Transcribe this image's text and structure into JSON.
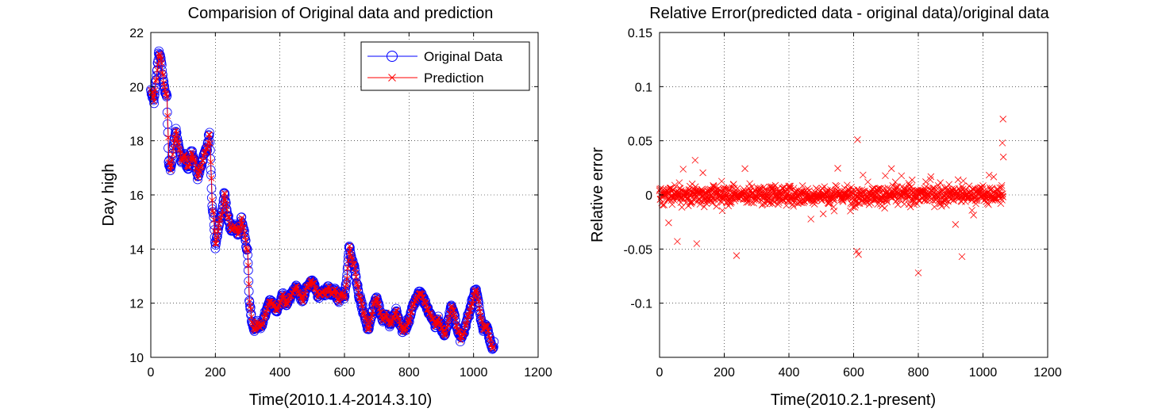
{
  "chart_data": [
    {
      "type": "line",
      "title": "Comparision of Original data and prediction",
      "xlabel": "Time(2010.1.4-2014.3.10)",
      "ylabel": "Day high",
      "xlim": [
        0,
        1200
      ],
      "ylim": [
        10,
        22
      ],
      "xticks": [
        "0",
        "200",
        "400",
        "600",
        "800",
        "1000",
        "1200"
      ],
      "yticks": [
        "10",
        "12",
        "14",
        "16",
        "18",
        "20",
        "22"
      ],
      "grid": true,
      "legend": "top-right",
      "colors": {
        "original": "#0000ff",
        "prediction": "#ff0000"
      },
      "keypoints": [
        [
          0,
          19.8
        ],
        [
          10,
          19.5
        ],
        [
          18,
          20.4
        ],
        [
          25,
          21.3
        ],
        [
          32,
          21.0
        ],
        [
          38,
          20.2
        ],
        [
          45,
          19.8
        ],
        [
          50,
          19.6
        ],
        [
          55,
          17.2
        ],
        [
          62,
          17.0
        ],
        [
          70,
          17.8
        ],
        [
          78,
          18.4
        ],
        [
          85,
          17.9
        ],
        [
          95,
          17.2
        ],
        [
          105,
          17.5
        ],
        [
          115,
          16.9
        ],
        [
          125,
          17.6
        ],
        [
          135,
          17.3
        ],
        [
          145,
          16.7
        ],
        [
          155,
          17.0
        ],
        [
          165,
          17.5
        ],
        [
          175,
          17.8
        ],
        [
          182,
          18.3
        ],
        [
          190,
          15.6
        ],
        [
          195,
          15.2
        ],
        [
          200,
          14.0
        ],
        [
          205,
          14.5
        ],
        [
          212,
          15.0
        ],
        [
          220,
          15.3
        ],
        [
          228,
          16.1
        ],
        [
          235,
          15.4
        ],
        [
          242,
          15.0
        ],
        [
          250,
          14.7
        ],
        [
          260,
          14.9
        ],
        [
          270,
          14.5
        ],
        [
          280,
          15.1
        ],
        [
          290,
          14.6
        ],
        [
          300,
          13.8
        ],
        [
          305,
          12.1
        ],
        [
          312,
          11.4
        ],
        [
          320,
          11.0
        ],
        [
          330,
          11.3
        ],
        [
          340,
          11.1
        ],
        [
          350,
          11.4
        ],
        [
          360,
          11.8
        ],
        [
          370,
          12.1
        ],
        [
          380,
          11.9
        ],
        [
          390,
          11.7
        ],
        [
          400,
          12.0
        ],
        [
          410,
          12.3
        ],
        [
          420,
          11.9
        ],
        [
          430,
          12.2
        ],
        [
          440,
          12.4
        ],
        [
          450,
          12.6
        ],
        [
          460,
          12.3
        ],
        [
          470,
          12.1
        ],
        [
          480,
          12.5
        ],
        [
          490,
          12.7
        ],
        [
          500,
          12.8
        ],
        [
          510,
          12.6
        ],
        [
          520,
          12.2
        ],
        [
          530,
          12.5
        ],
        [
          540,
          12.3
        ],
        [
          550,
          12.6
        ],
        [
          560,
          12.3
        ],
        [
          570,
          12.5
        ],
        [
          580,
          12.1
        ],
        [
          590,
          12.4
        ],
        [
          600,
          12.2
        ],
        [
          608,
          13.0
        ],
        [
          615,
          14.2
        ],
        [
          622,
          13.6
        ],
        [
          630,
          13.4
        ],
        [
          638,
          12.8
        ],
        [
          645,
          12.3
        ],
        [
          652,
          12.0
        ],
        [
          660,
          11.6
        ],
        [
          668,
          11.3
        ],
        [
          675,
          11.0
        ],
        [
          682,
          11.5
        ],
        [
          690,
          11.9
        ],
        [
          700,
          12.2
        ],
        [
          710,
          11.7
        ],
        [
          720,
          11.4
        ],
        [
          730,
          11.6
        ],
        [
          740,
          11.2
        ],
        [
          750,
          11.4
        ],
        [
          760,
          11.7
        ],
        [
          770,
          11.3
        ],
        [
          780,
          11.0
        ],
        [
          790,
          11.1
        ],
        [
          800,
          11.4
        ],
        [
          810,
          11.8
        ],
        [
          820,
          12.1
        ],
        [
          830,
          12.4
        ],
        [
          840,
          12.3
        ],
        [
          850,
          12.0
        ],
        [
          860,
          11.7
        ],
        [
          870,
          11.5
        ],
        [
          880,
          11.2
        ],
        [
          890,
          11.4
        ],
        [
          900,
          11.1
        ],
        [
          910,
          10.8
        ],
        [
          920,
          11.3
        ],
        [
          930,
          11.9
        ],
        [
          940,
          11.6
        ],
        [
          950,
          11.0
        ],
        [
          960,
          10.7
        ],
        [
          970,
          10.9
        ],
        [
          980,
          11.4
        ],
        [
          990,
          11.8
        ],
        [
          1000,
          12.3
        ],
        [
          1008,
          12.5
        ],
        [
          1015,
          12.1
        ],
        [
          1022,
          11.4
        ],
        [
          1030,
          11.0
        ],
        [
          1038,
          11.2
        ],
        [
          1045,
          11.0
        ],
        [
          1050,
          10.7
        ],
        [
          1055,
          10.4
        ],
        [
          1060,
          10.3
        ],
        [
          1063,
          10.5
        ]
      ],
      "series": [
        {
          "name": "Original Data",
          "marker": "circle",
          "color": "#0000ff"
        },
        {
          "name": "Prediction",
          "marker": "x",
          "color": "#ff0000"
        }
      ]
    },
    {
      "type": "scatter",
      "title": "Relative Error(predicted data - original data)/original data",
      "xlabel": "Time(2010.2.1-present)",
      "ylabel": "Relative error",
      "xlim": [
        0,
        1200
      ],
      "ylim": [
        -0.15,
        0.15
      ],
      "xticks": [
        "0",
        "200",
        "400",
        "600",
        "800",
        "1000",
        "1200"
      ],
      "yticks": [
        "0.15",
        "0.1",
        "0.05",
        "0",
        "-0.05",
        "-0.1"
      ],
      "ytick_values": [
        0.15,
        0.1,
        0.05,
        0,
        -0.05,
        -0.1
      ],
      "grid": true,
      "marker": "x",
      "color": "#ff0000",
      "n_points": 1063,
      "outliers": [
        [
          612,
          0.051
        ],
        [
          1062,
          0.07
        ],
        [
          1060,
          0.048
        ],
        [
          1063,
          0.035
        ],
        [
          800,
          -0.072
        ],
        [
          935,
          -0.057
        ],
        [
          238,
          -0.056
        ],
        [
          610,
          -0.052
        ],
        [
          615,
          -0.055
        ],
        [
          110,
          0.032
        ],
        [
          55,
          -0.043
        ],
        [
          115,
          -0.045
        ]
      ]
    }
  ]
}
